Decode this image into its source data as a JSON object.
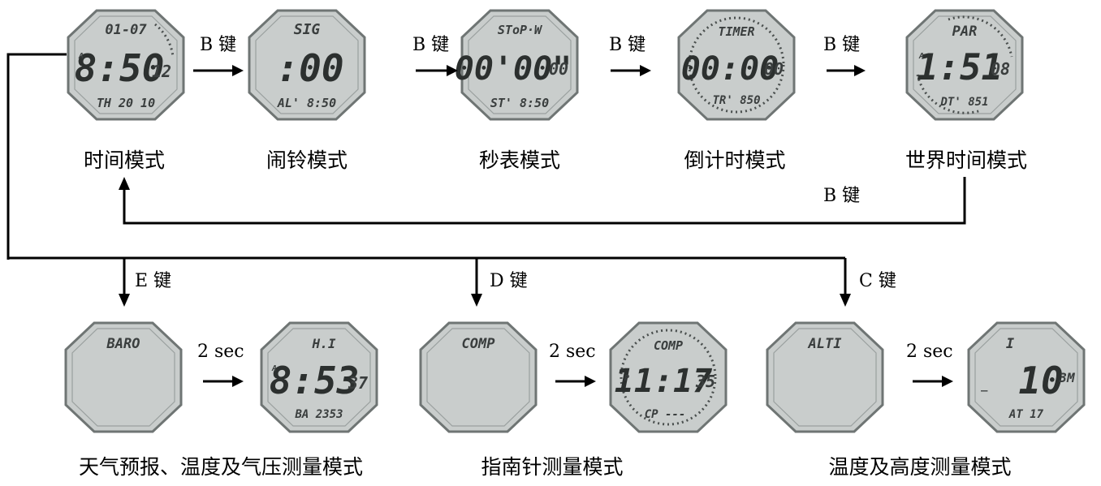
{
  "top_row": [
    {
      "id": "time",
      "caption": "时间模式",
      "lcd_top": "01-07",
      "lcd_main": "8:50",
      "lcd_sec": "12",
      "lcd_bottom": "TH 20 10",
      "lcd_mark": "A"
    },
    {
      "id": "alarm",
      "caption": "闹铃模式",
      "lcd_top": "SIG",
      "lcd_main": ":00",
      "lcd_sec": "",
      "lcd_bottom": "AL' 8:50",
      "lcd_mark": ""
    },
    {
      "id": "stopwatch",
      "caption": "秒表模式",
      "lcd_top": "SToP·W",
      "lcd_main": "00'00\"",
      "lcd_sec": "00",
      "lcd_bottom": "ST' 8:50",
      "lcd_mark": ""
    },
    {
      "id": "timer",
      "caption": "倒计时模式",
      "lcd_top": "TIMER",
      "lcd_main": "00:00",
      "lcd_sec": "00",
      "lcd_bottom": "TR' 850",
      "lcd_mark": ""
    },
    {
      "id": "worldtime",
      "caption": "世界时间模式",
      "lcd_top": "PAR",
      "lcd_main": "1:51",
      "lcd_sec": "08",
      "lcd_bottom": "DT' 851",
      "lcd_mark": "A"
    }
  ],
  "top_keys": [
    "B 键",
    "B 键",
    "B 键",
    "B 键"
  ],
  "return_key": "B 键",
  "branch_keys": [
    "E 键",
    "D 键",
    "C 键"
  ],
  "bottom_groups": [
    {
      "caption": "天气预报、温度及气压测量模式",
      "delay": "2 sec",
      "first": {
        "lcd_top": "BARO"
      },
      "second": {
        "lcd_top": "H.I",
        "lcd_main": "8:53",
        "lcd_sec": "37",
        "lcd_bottom": "BA 2353",
        "lcd_mark": "A"
      }
    },
    {
      "caption": "指南针测量模式",
      "delay": "2 sec",
      "first": {
        "lcd_top": "COMP"
      },
      "second": {
        "lcd_top": "COMP",
        "lcd_main": "11:17",
        "lcd_sec": "35",
        "lcd_bottom": "CP ---",
        "lcd_mark": "P"
      }
    },
    {
      "caption": "温度及高度测量模式",
      "delay": "2 sec",
      "first": {
        "lcd_top": "ALTI"
      },
      "second": {
        "lcd_top": "I",
        "lcd_main": "10",
        "lcd_sec": "3M",
        "lcd_bottom": "AT 17",
        "lcd_mark": "_"
      }
    }
  ]
}
